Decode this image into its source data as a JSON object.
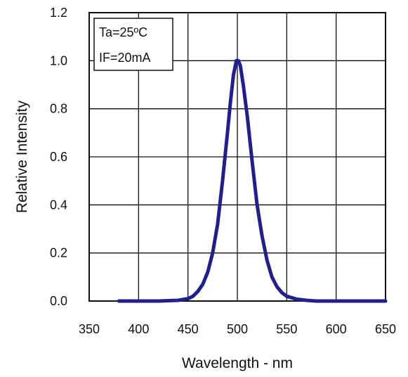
{
  "chart_data": {
    "type": "line",
    "title": "",
    "xlabel": "Wavelength - nm",
    "ylabel": "Relative Intensity",
    "xlim": [
      350,
      650
    ],
    "ylim": [
      0,
      1.2
    ],
    "xticks": [
      350,
      400,
      450,
      500,
      550,
      600,
      650
    ],
    "yticks": [
      0.0,
      0.2,
      0.4,
      0.6,
      0.8,
      1.0,
      1.2
    ],
    "xtick_labels": [
      "350",
      "400",
      "450",
      "500",
      "550",
      "600",
      "650"
    ],
    "ytick_labels": [
      "0.0",
      "0.2",
      "0.4",
      "0.6",
      "0.8",
      "1.0",
      "1.2"
    ],
    "grid": true,
    "legend_placement": "top-left",
    "annotations": [
      "Ta=25ºC",
      "IF=20mA"
    ],
    "series": [
      {
        "color": "#1f1f8f",
        "x": [
          380,
          420,
          440,
          450,
          455,
          460,
          465,
          470,
          475,
          480,
          485,
          490,
          493,
          496,
          499,
          501,
          503,
          506,
          510,
          515,
          520,
          525,
          530,
          535,
          540,
          545,
          550,
          560,
          570,
          580,
          590,
          600,
          620,
          650
        ],
        "y": [
          0.0,
          0.0,
          0.003,
          0.01,
          0.02,
          0.04,
          0.07,
          0.12,
          0.2,
          0.32,
          0.5,
          0.7,
          0.83,
          0.94,
          1.0,
          1.0,
          0.98,
          0.9,
          0.77,
          0.58,
          0.4,
          0.27,
          0.17,
          0.1,
          0.06,
          0.035,
          0.02,
          0.008,
          0.003,
          0.0,
          0.0,
          0.0,
          0.0,
          0.0
        ]
      }
    ]
  }
}
